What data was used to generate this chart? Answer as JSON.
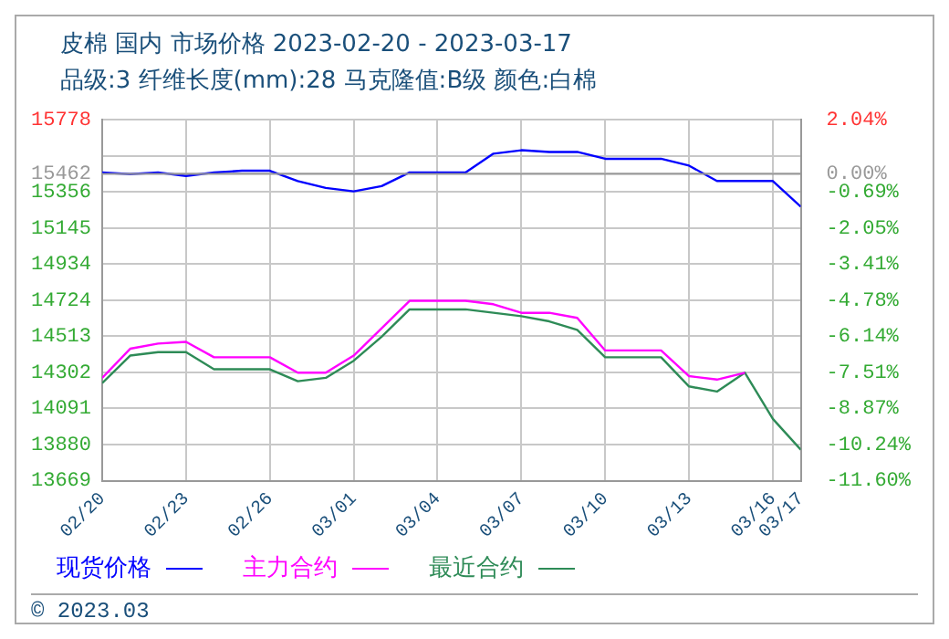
{
  "chart_data": {
    "type": "line",
    "title": "皮棉 国内 市场价格 2023-02-20 - 2023-03-17",
    "subtitle": "品级:3 纤维长度(mm):28 马克隆值:B级 颜色:白棉",
    "x": [
      "2023-02-20",
      "2023-02-21",
      "2023-02-22",
      "2023-02-23",
      "2023-02-24",
      "2023-02-25",
      "2023-02-26",
      "2023-02-27",
      "2023-02-28",
      "2023-03-01",
      "2023-03-02",
      "2023-03-03",
      "2023-03-04",
      "2023-03-05",
      "2023-03-06",
      "2023-03-07",
      "2023-03-08",
      "2023-03-09",
      "2023-03-10",
      "2023-03-11",
      "2023-03-12",
      "2023-03-13",
      "2023-03-14",
      "2023-03-15",
      "2023-03-16",
      "2023-03-17"
    ],
    "series": [
      {
        "name": "现货价格",
        "color": "#0000ff",
        "values": [
          15470,
          15460,
          15470,
          15450,
          15470,
          15480,
          15480,
          15420,
          15380,
          15360,
          15390,
          15470,
          15470,
          15470,
          15580,
          15600,
          15590,
          15590,
          15550,
          15550,
          15550,
          15510,
          15420,
          15420,
          15420,
          15270
        ]
      },
      {
        "name": "主力合约",
        "color": "#ff00ff",
        "values": [
          14270,
          14440,
          14470,
          14480,
          14390,
          14390,
          14390,
          14300,
          14300,
          14400,
          14560,
          14720,
          14720,
          14720,
          14700,
          14650,
          14650,
          14620,
          14430,
          14430,
          14430,
          14280,
          14260,
          14300,
          null,
          null
        ]
      },
      {
        "name": "最近合约",
        "color": "#2e8b57",
        "values": [
          14240,
          14400,
          14420,
          14420,
          14320,
          14320,
          14320,
          14250,
          14270,
          14370,
          14510,
          14670,
          14670,
          14670,
          14650,
          14630,
          14600,
          14550,
          14390,
          14390,
          14390,
          14220,
          14190,
          14300,
          14030,
          13850
        ]
      }
    ],
    "xlim": [
      "2023-02-20",
      "2023-03-17"
    ],
    "xticks": [
      {
        "value": "2023-02-20",
        "label": "02/20"
      },
      {
        "value": "2023-02-23",
        "label": "02/23"
      },
      {
        "value": "2023-02-26",
        "label": "02/26"
      },
      {
        "value": "2023-03-01",
        "label": "03/01"
      },
      {
        "value": "2023-03-04",
        "label": "03/04"
      },
      {
        "value": "2023-03-07",
        "label": "03/07"
      },
      {
        "value": "2023-03-10",
        "label": "03/10"
      },
      {
        "value": "2023-03-13",
        "label": "03/13"
      },
      {
        "value": "2023-03-16",
        "label": "03/16"
      },
      {
        "value": "2023-03-17",
        "label": "03/17"
      }
    ],
    "ylim": [
      13669,
      15778
    ],
    "yticks": [
      15778,
      {
        "value": 15567,
        "label": null
      },
      15462,
      15356,
      15145,
      14934,
      14724,
      14513,
      14302,
      14091,
      13880,
      13669
    ],
    "y2lim": [
      -11.6,
      2.04
    ],
    "y2ticks": [
      {
        "value": 2.04,
        "label": "2.04%"
      },
      {
        "value": 0,
        "label": "0.00%"
      },
      {
        "value": -0.69,
        "label": "-0.69%"
      },
      {
        "value": -2.05,
        "label": "-2.05%"
      },
      {
        "value": -3.41,
        "label": "-3.41%"
      },
      {
        "value": -4.78,
        "label": "-4.78%"
      },
      {
        "value": -6.14,
        "label": "-6.14%"
      },
      {
        "value": -7.51,
        "label": "-7.51%"
      },
      {
        "value": -8.87,
        "label": "-8.87%"
      },
      {
        "value": -10.24,
        "label": "-10.24%"
      },
      {
        "value": -11.6,
        "label": "-11.60%"
      }
    ],
    "ref_lines": [
      {
        "axis": "y",
        "value": 15462,
        "color": "#999999"
      }
    ],
    "grid": true,
    "legend": "bottom",
    "annotations": [
      "© 2023.03"
    ]
  }
}
